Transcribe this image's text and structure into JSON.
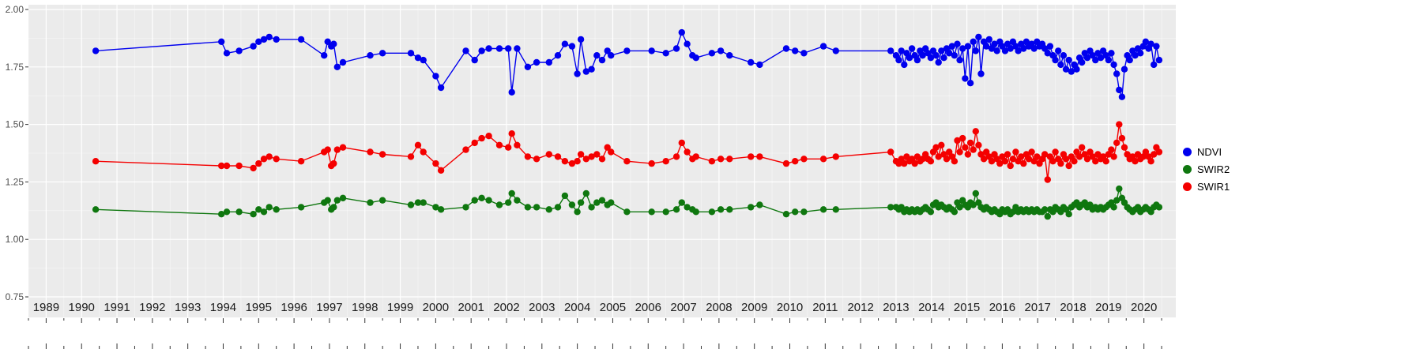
{
  "chart_data": {
    "type": "scatter-line",
    "title": "",
    "xlabel": "",
    "ylabel": "",
    "xlim": [
      1988.5,
      2020.9
    ],
    "ylim": [
      0.75,
      2.0
    ],
    "grid": true,
    "panel_bg": "#EBEBEB",
    "grid_major_color": "#FFFFFF",
    "grid_minor_color": "#FFFFFF",
    "tick_color": "#333333",
    "x_tick_label_color": "#1a1a1a",
    "y_tick_label_color": "#4d4d4d",
    "x_ticks": [
      1989,
      1990,
      1991,
      1992,
      1993,
      1994,
      1995,
      1996,
      1997,
      1998,
      1999,
      2000,
      2001,
      2002,
      2003,
      2004,
      2005,
      2006,
      2007,
      2008,
      2009,
      2010,
      2011,
      2012,
      2013,
      2014,
      2015,
      2016,
      2017,
      2018,
      2019,
      2020
    ],
    "x_tick_labels": [
      "1989",
      "1990",
      "1991",
      "1992",
      "1993",
      "1994",
      "1995",
      "1996",
      "1997",
      "1998",
      "1999",
      "2000",
      "2001",
      "2002",
      "2003",
      "2004",
      "2005",
      "2006",
      "2007",
      "2008",
      "2009",
      "2010",
      "2011",
      "2012",
      "2013",
      "2014",
      "2015",
      "2016",
      "2017",
      "2018",
      "2019",
      "2020"
    ],
    "y_ticks": [
      0.75,
      1.0,
      1.25,
      1.5,
      1.75,
      2.0
    ],
    "y_tick_labels": [
      "0.75",
      "1.00",
      "1.25",
      "1.50",
      "1.75",
      "2.00"
    ],
    "legend": {
      "position": "right",
      "entries": [
        {
          "label": "NDVI",
          "color": "#0000EE"
        },
        {
          "label": "SWIR2",
          "color": "#0F770F"
        },
        {
          "label": "SWIR1",
          "color": "#F40000"
        }
      ]
    },
    "x": [
      1990.4,
      1993.95,
      1994.1,
      1994.45,
      1994.85,
      1995.0,
      1995.15,
      1995.3,
      1995.5,
      1996.2,
      1996.85,
      1996.95,
      1997.05,
      1997.12,
      1997.22,
      1997.38,
      1998.15,
      1998.5,
      1999.3,
      1999.5,
      1999.65,
      2000.0,
      2000.15,
      2000.85,
      2001.1,
      2001.3,
      2001.5,
      2001.8,
      2002.05,
      2002.15,
      2002.3,
      2002.6,
      2002.85,
      2003.2,
      2003.45,
      2003.65,
      2003.85,
      2004.0,
      2004.1,
      2004.25,
      2004.4,
      2004.55,
      2004.7,
      2004.85,
      2004.95,
      2005.4,
      2006.1,
      2006.5,
      2006.8,
      2006.95,
      2007.1,
      2007.25,
      2007.35,
      2007.8,
      2008.05,
      2008.3,
      2008.9,
      2009.15,
      2009.9,
      2010.15,
      2010.4,
      2010.95,
      2011.3,
      2012.85,
      2013.0,
      2013.08,
      2013.15,
      2013.23,
      2013.3,
      2013.38,
      2013.45,
      2013.53,
      2013.6,
      2013.68,
      2013.75,
      2013.83,
      2013.9,
      2013.98,
      2014.05,
      2014.13,
      2014.2,
      2014.28,
      2014.35,
      2014.43,
      2014.5,
      2014.58,
      2014.65,
      2014.73,
      2014.8,
      2014.88,
      2014.95,
      2015.03,
      2015.1,
      2015.18,
      2015.25,
      2015.33,
      2015.4,
      2015.48,
      2015.55,
      2015.63,
      2015.7,
      2015.78,
      2015.85,
      2015.93,
      2016.0,
      2016.08,
      2016.15,
      2016.23,
      2016.3,
      2016.38,
      2016.45,
      2016.53,
      2016.6,
      2016.68,
      2016.75,
      2016.83,
      2016.9,
      2016.98,
      2017.05,
      2017.13,
      2017.2,
      2017.28,
      2017.35,
      2017.43,
      2017.5,
      2017.58,
      2017.65,
      2017.73,
      2017.8,
      2017.88,
      2017.95,
      2018.03,
      2018.1,
      2018.18,
      2018.25,
      2018.33,
      2018.4,
      2018.48,
      2018.55,
      2018.63,
      2018.7,
      2018.78,
      2018.85,
      2018.93,
      2019.0,
      2019.08,
      2019.15,
      2019.23,
      2019.3,
      2019.38,
      2019.45,
      2019.53,
      2019.6,
      2019.68,
      2019.75,
      2019.83,
      2019.9,
      2019.98,
      2020.05,
      2020.13,
      2020.2,
      2020.28,
      2020.35,
      2020.43
    ],
    "series": [
      {
        "name": "NDVI",
        "color": "#0000EE",
        "values": [
          1.82,
          1.86,
          1.81,
          1.82,
          1.84,
          1.86,
          1.87,
          1.88,
          1.87,
          1.87,
          1.8,
          1.86,
          1.84,
          1.85,
          1.75,
          1.77,
          1.8,
          1.81,
          1.81,
          1.79,
          1.78,
          1.71,
          1.66,
          1.82,
          1.78,
          1.82,
          1.83,
          1.83,
          1.83,
          1.64,
          1.83,
          1.75,
          1.77,
          1.77,
          1.8,
          1.85,
          1.84,
          1.72,
          1.87,
          1.73,
          1.74,
          1.8,
          1.78,
          1.82,
          1.8,
          1.82,
          1.82,
          1.81,
          1.83,
          1.9,
          1.85,
          1.8,
          1.79,
          1.81,
          1.82,
          1.8,
          1.77,
          1.76,
          1.83,
          1.82,
          1.81,
          1.84,
          1.82,
          1.82,
          1.8,
          1.78,
          1.82,
          1.76,
          1.81,
          1.79,
          1.83,
          1.8,
          1.78,
          1.82,
          1.8,
          1.83,
          1.81,
          1.79,
          1.82,
          1.8,
          1.77,
          1.82,
          1.79,
          1.83,
          1.81,
          1.84,
          1.8,
          1.85,
          1.78,
          1.83,
          1.7,
          1.84,
          1.68,
          1.86,
          1.82,
          1.88,
          1.72,
          1.86,
          1.84,
          1.87,
          1.83,
          1.85,
          1.82,
          1.86,
          1.84,
          1.82,
          1.85,
          1.83,
          1.86,
          1.84,
          1.82,
          1.85,
          1.83,
          1.86,
          1.84,
          1.85,
          1.83,
          1.86,
          1.84,
          1.85,
          1.83,
          1.81,
          1.84,
          1.8,
          1.78,
          1.82,
          1.76,
          1.8,
          1.74,
          1.78,
          1.73,
          1.76,
          1.74,
          1.79,
          1.77,
          1.81,
          1.79,
          1.82,
          1.8,
          1.78,
          1.81,
          1.79,
          1.82,
          1.8,
          1.78,
          1.81,
          1.76,
          1.72,
          1.65,
          1.62,
          1.74,
          1.8,
          1.78,
          1.82,
          1.8,
          1.83,
          1.81,
          1.84,
          1.86,
          1.83,
          1.85,
          1.76,
          1.84,
          1.78
        ]
      },
      {
        "name": "SWIR2",
        "color": "#0F770F",
        "values": [
          1.13,
          1.11,
          1.12,
          1.12,
          1.11,
          1.13,
          1.12,
          1.14,
          1.13,
          1.14,
          1.16,
          1.17,
          1.13,
          1.14,
          1.17,
          1.18,
          1.16,
          1.17,
          1.15,
          1.16,
          1.16,
          1.14,
          1.13,
          1.14,
          1.17,
          1.18,
          1.17,
          1.15,
          1.16,
          1.2,
          1.17,
          1.14,
          1.14,
          1.13,
          1.14,
          1.19,
          1.15,
          1.12,
          1.16,
          1.2,
          1.14,
          1.16,
          1.17,
          1.15,
          1.16,
          1.12,
          1.12,
          1.12,
          1.13,
          1.16,
          1.14,
          1.13,
          1.12,
          1.12,
          1.13,
          1.13,
          1.14,
          1.15,
          1.11,
          1.12,
          1.12,
          1.13,
          1.13,
          1.14,
          1.14,
          1.13,
          1.14,
          1.12,
          1.13,
          1.12,
          1.13,
          1.12,
          1.13,
          1.12,
          1.13,
          1.14,
          1.13,
          1.12,
          1.15,
          1.16,
          1.14,
          1.15,
          1.14,
          1.13,
          1.14,
          1.13,
          1.12,
          1.16,
          1.14,
          1.17,
          1.15,
          1.14,
          1.16,
          1.15,
          1.2,
          1.16,
          1.14,
          1.13,
          1.14,
          1.13,
          1.12,
          1.13,
          1.12,
          1.11,
          1.13,
          1.12,
          1.13,
          1.11,
          1.12,
          1.14,
          1.12,
          1.13,
          1.12,
          1.13,
          1.12,
          1.13,
          1.12,
          1.13,
          1.12,
          1.12,
          1.13,
          1.1,
          1.13,
          1.12,
          1.14,
          1.13,
          1.12,
          1.14,
          1.13,
          1.11,
          1.14,
          1.15,
          1.16,
          1.14,
          1.15,
          1.16,
          1.14,
          1.15,
          1.13,
          1.14,
          1.13,
          1.14,
          1.13,
          1.14,
          1.15,
          1.16,
          1.14,
          1.17,
          1.22,
          1.18,
          1.16,
          1.14,
          1.13,
          1.12,
          1.13,
          1.14,
          1.12,
          1.13,
          1.14,
          1.13,
          1.12,
          1.14,
          1.15,
          1.14
        ]
      },
      {
        "name": "SWIR1",
        "color": "#F40000",
        "values": [
          1.34,
          1.32,
          1.32,
          1.32,
          1.31,
          1.33,
          1.35,
          1.36,
          1.35,
          1.34,
          1.38,
          1.39,
          1.32,
          1.33,
          1.39,
          1.4,
          1.38,
          1.37,
          1.36,
          1.41,
          1.38,
          1.33,
          1.3,
          1.39,
          1.42,
          1.44,
          1.45,
          1.41,
          1.4,
          1.46,
          1.41,
          1.36,
          1.35,
          1.37,
          1.36,
          1.34,
          1.33,
          1.34,
          1.37,
          1.35,
          1.36,
          1.37,
          1.35,
          1.4,
          1.38,
          1.34,
          1.33,
          1.34,
          1.36,
          1.42,
          1.38,
          1.35,
          1.36,
          1.34,
          1.35,
          1.35,
          1.36,
          1.36,
          1.33,
          1.34,
          1.35,
          1.35,
          1.36,
          1.38,
          1.34,
          1.33,
          1.35,
          1.33,
          1.36,
          1.34,
          1.35,
          1.33,
          1.36,
          1.34,
          1.35,
          1.37,
          1.35,
          1.34,
          1.38,
          1.4,
          1.36,
          1.41,
          1.37,
          1.35,
          1.38,
          1.36,
          1.34,
          1.43,
          1.38,
          1.44,
          1.4,
          1.37,
          1.42,
          1.39,
          1.47,
          1.41,
          1.37,
          1.35,
          1.38,
          1.36,
          1.34,
          1.37,
          1.35,
          1.33,
          1.36,
          1.34,
          1.37,
          1.32,
          1.35,
          1.38,
          1.34,
          1.36,
          1.33,
          1.37,
          1.35,
          1.38,
          1.34,
          1.36,
          1.33,
          1.35,
          1.37,
          1.26,
          1.36,
          1.34,
          1.38,
          1.35,
          1.33,
          1.37,
          1.35,
          1.32,
          1.36,
          1.34,
          1.38,
          1.36,
          1.4,
          1.37,
          1.35,
          1.38,
          1.36,
          1.34,
          1.37,
          1.35,
          1.36,
          1.34,
          1.37,
          1.39,
          1.36,
          1.42,
          1.5,
          1.44,
          1.4,
          1.37,
          1.35,
          1.36,
          1.34,
          1.37,
          1.35,
          1.36,
          1.38,
          1.36,
          1.34,
          1.37,
          1.4,
          1.38
        ]
      }
    ]
  }
}
